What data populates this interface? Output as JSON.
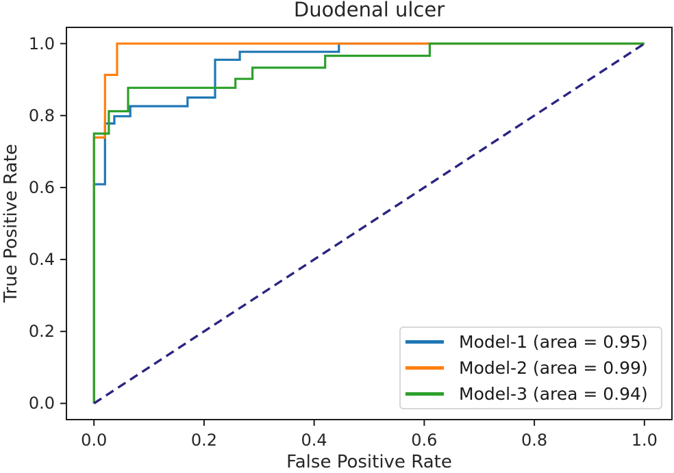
{
  "chart_data": {
    "type": "line",
    "subtype": "roc-curve",
    "title": "Duodenal ulcer",
    "xlabel": "False Positive Rate",
    "ylabel": "True Positive Rate",
    "xlim": [
      -0.05,
      1.05
    ],
    "ylim": [
      -0.045,
      1.045
    ],
    "grid": false,
    "legend_position": "lower right",
    "xticks": {
      "values": [
        0.0,
        0.2,
        0.4,
        0.6,
        0.8,
        1.0
      ],
      "labels": [
        "0.0",
        "0.2",
        "0.4",
        "0.6",
        "0.8",
        "1.0"
      ]
    },
    "yticks": {
      "values": [
        0.0,
        0.2,
        0.4,
        0.6,
        0.8,
        1.0
      ],
      "labels": [
        "0.0",
        "0.2",
        "0.4",
        "0.6",
        "0.8",
        "1.0"
      ]
    },
    "series": [
      {
        "name": "Model-1",
        "label": "Model-1 (area = 0.95)",
        "area": 0.95,
        "color": "#1f77b4",
        "style": "solid",
        "x": [
          0,
          0,
          0.02,
          0.02,
          0.037,
          0.037,
          0.066,
          0.066,
          0.17,
          0.17,
          0.22,
          0.22,
          0.265,
          0.265,
          0.445,
          0.445,
          1.0
        ],
        "y": [
          0,
          0.609,
          0.609,
          0.778,
          0.778,
          0.798,
          0.798,
          0.826,
          0.826,
          0.85,
          0.85,
          0.955,
          0.955,
          0.977,
          0.977,
          1.0,
          1.0
        ]
      },
      {
        "name": "Model-2",
        "label": "Model-2 (area = 0.99)",
        "area": 0.99,
        "color": "#ff7f0e",
        "style": "solid",
        "x": [
          0,
          0,
          0.02,
          0.02,
          0.042,
          0.042,
          1.0
        ],
        "y": [
          0,
          0.739,
          0.739,
          0.913,
          0.913,
          1.0,
          1.0
        ]
      },
      {
        "name": "Model-3",
        "label": "Model-3 (area = 0.94)",
        "area": 0.94,
        "color": "#2ca02c",
        "style": "solid",
        "x": [
          0,
          0,
          0.027,
          0.027,
          0.062,
          0.062,
          0.257,
          0.257,
          0.288,
          0.288,
          0.42,
          0.42,
          0.61,
          0.61,
          1.0
        ],
        "y": [
          0,
          0.75,
          0.75,
          0.812,
          0.812,
          0.877,
          0.877,
          0.902,
          0.902,
          0.933,
          0.933,
          0.966,
          0.966,
          1.0,
          1.0
        ]
      }
    ],
    "reference_line": {
      "name": "chance-diagonal",
      "color": "#2a2482",
      "style": "dashed",
      "x": [
        0,
        1
      ],
      "y": [
        0,
        1
      ]
    },
    "colors": {
      "axis": "#1a1a1a",
      "text": "#262626",
      "legend_border": "#d7d7d7",
      "background": "#ffffff"
    }
  }
}
